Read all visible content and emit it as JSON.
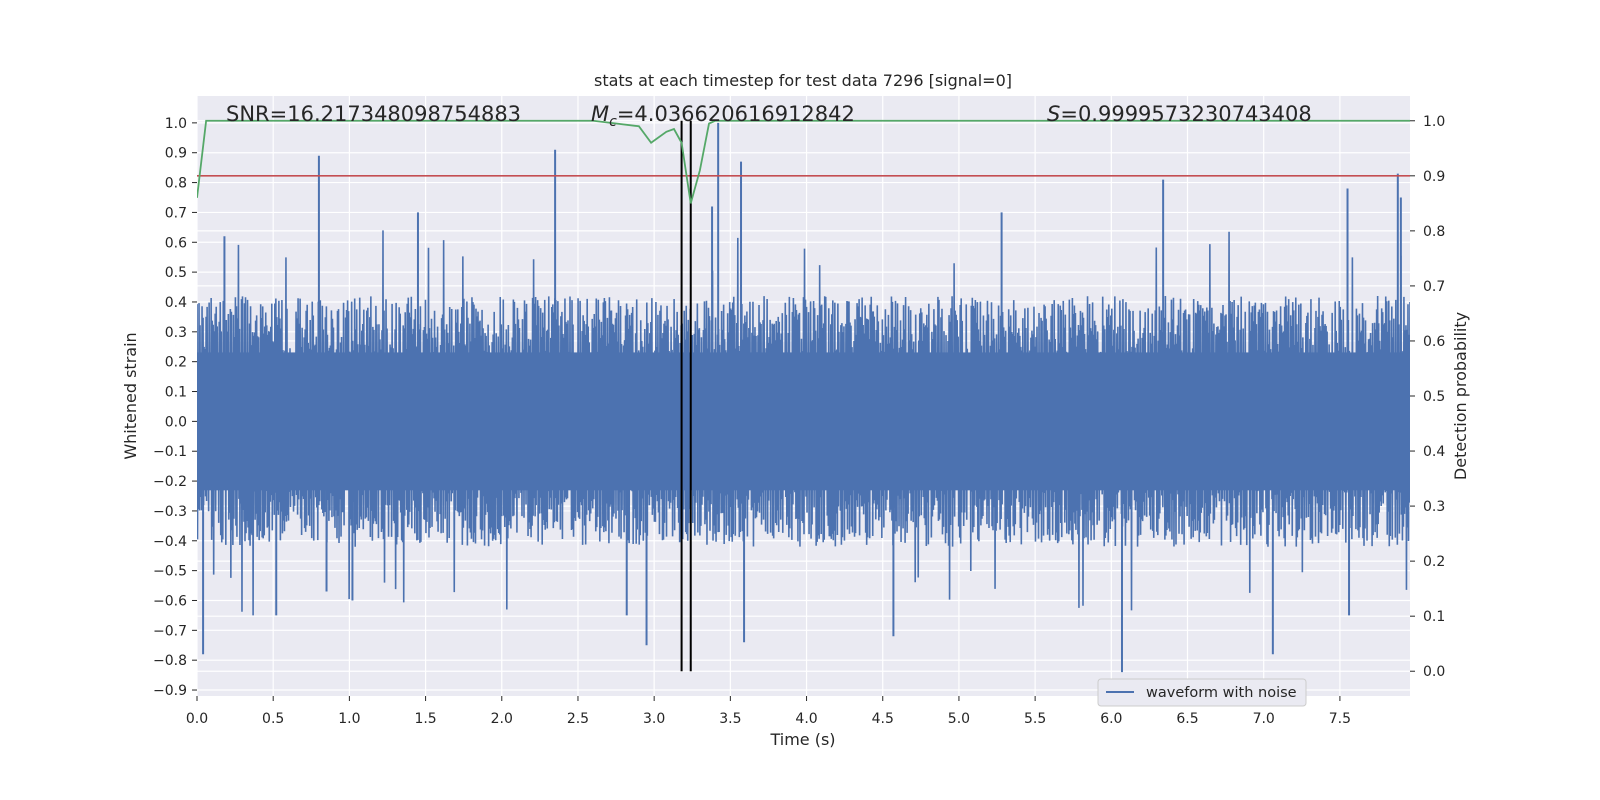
{
  "chart_data": {
    "type": "line",
    "title": "stats at each timestep for test data 7296 [signal=0]",
    "xlabel": "Time (s)",
    "ylabel": "Whitened strain",
    "y2label": "Detection probability",
    "xlim": [
      0.0,
      7.96
    ],
    "ylim": [
      -0.92,
      1.09
    ],
    "y2lim": [
      -0.045,
      1.045
    ],
    "xticks": [
      "0.0",
      "0.5",
      "1.0",
      "1.5",
      "2.0",
      "2.5",
      "3.0",
      "3.5",
      "4.0",
      "4.5",
      "5.0",
      "5.5",
      "6.0",
      "6.5",
      "7.0",
      "7.5"
    ],
    "yticks": [
      "1.0",
      "0.9",
      "0.8",
      "0.7",
      "0.6",
      "0.5",
      "0.4",
      "0.3",
      "0.2",
      "0.1",
      "0.0",
      "−0.1",
      "−0.2",
      "−0.3",
      "−0.4",
      "−0.5",
      "−0.6",
      "−0.7",
      "−0.8",
      "−0.9"
    ],
    "y2ticks": [
      "1.0",
      "0.9",
      "0.8",
      "0.7",
      "0.6",
      "0.5",
      "0.4",
      "0.3",
      "0.2",
      "0.1",
      "0.0"
    ],
    "annotations": {
      "snr_label": "SNR=16.217348098754883",
      "mc_symbol": "M",
      "mc_subscript": "c",
      "mc_value": "=4.036620616912842",
      "s_symbol": "S",
      "s_value": "=0.9999573230743408"
    },
    "legend": {
      "location": "lower-right",
      "entries": [
        "waveform with noise"
      ]
    },
    "threshold": {
      "y2": 0.9,
      "color": "#c44e52"
    },
    "vlines_x": [
      3.18,
      3.24
    ],
    "strain_envelope": {
      "color": "#4c72b0",
      "typical_upper": 0.42,
      "typical_lower": -0.42,
      "spikes": [
        {
          "x": 0.04,
          "y": -0.78
        },
        {
          "x": 0.18,
          "y": 0.62
        },
        {
          "x": 0.52,
          "y": -0.65
        },
        {
          "x": 0.8,
          "y": 0.89
        },
        {
          "x": 0.85,
          "y": -0.57
        },
        {
          "x": 1.02,
          "y": -0.6
        },
        {
          "x": 1.45,
          "y": 0.7
        },
        {
          "x": 2.35,
          "y": 0.91
        },
        {
          "x": 2.82,
          "y": -0.65
        },
        {
          "x": 2.95,
          "y": -0.75
        },
        {
          "x": 3.38,
          "y": 0.72
        },
        {
          "x": 3.42,
          "y": 1.0
        },
        {
          "x": 3.57,
          "y": 0.87
        },
        {
          "x": 3.59,
          "y": -0.74
        },
        {
          "x": 4.57,
          "y": -0.72
        },
        {
          "x": 5.28,
          "y": 0.7
        },
        {
          "x": 6.07,
          "y": -0.84
        },
        {
          "x": 6.34,
          "y": 0.81
        },
        {
          "x": 7.06,
          "y": -0.78
        },
        {
          "x": 7.88,
          "y": 0.83
        },
        {
          "x": 7.9,
          "y": 0.75
        },
        {
          "x": 7.55,
          "y": 0.78
        },
        {
          "x": 7.56,
          "y": -0.65
        }
      ]
    },
    "detection_probability": {
      "color": "#55a868",
      "x": [
        0.0,
        0.06,
        0.3,
        1.0,
        2.0,
        2.6,
        2.75,
        2.9,
        2.98,
        3.08,
        3.13,
        3.18,
        3.24,
        3.3,
        3.36,
        3.4,
        3.6,
        4.5,
        5.5,
        6.5,
        7.5,
        7.96
      ],
      "y": [
        0.86,
        1.0,
        1.0,
        1.0,
        1.0,
        1.0,
        0.995,
        0.99,
        0.96,
        0.98,
        0.985,
        0.96,
        0.85,
        0.91,
        0.995,
        1.0,
        1.0,
        1.0,
        1.0,
        1.0,
        1.0,
        1.0
      ]
    }
  }
}
